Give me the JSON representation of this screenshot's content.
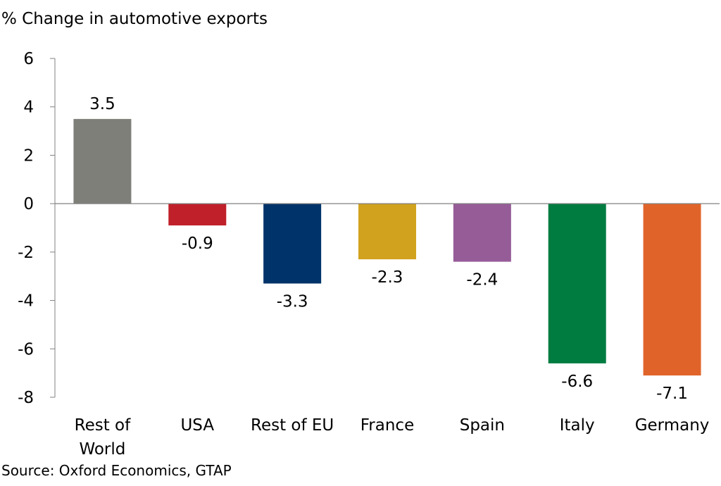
{
  "chart_data": {
    "type": "bar",
    "title": "",
    "ylabel": "% Change in automotive exports",
    "xlabel": "",
    "source": "Source: Oxford Economics, GTAP",
    "ylim": [
      -8,
      6
    ],
    "yticks": [
      6,
      4,
      2,
      0,
      -2,
      -4,
      -6,
      -8
    ],
    "grid": false,
    "categories": [
      [
        "Rest of",
        "World"
      ],
      [
        "USA"
      ],
      [
        "Rest of EU"
      ],
      [
        "France"
      ],
      [
        "Spain"
      ],
      [
        "Italy"
      ],
      [
        "Germany"
      ]
    ],
    "values": [
      3.5,
      -0.9,
      -3.3,
      -2.3,
      -2.4,
      -6.6,
      -7.1
    ],
    "data_labels": [
      "3.5",
      "-0.9",
      "-3.3",
      "-2.3",
      "-2.4",
      "-6.6",
      "-7.1"
    ],
    "colors": [
      "#7f7f7a",
      "#c0202a",
      "#003369",
      "#d1a21e",
      "#965c98",
      "#007c41",
      "#e0642a"
    ]
  }
}
